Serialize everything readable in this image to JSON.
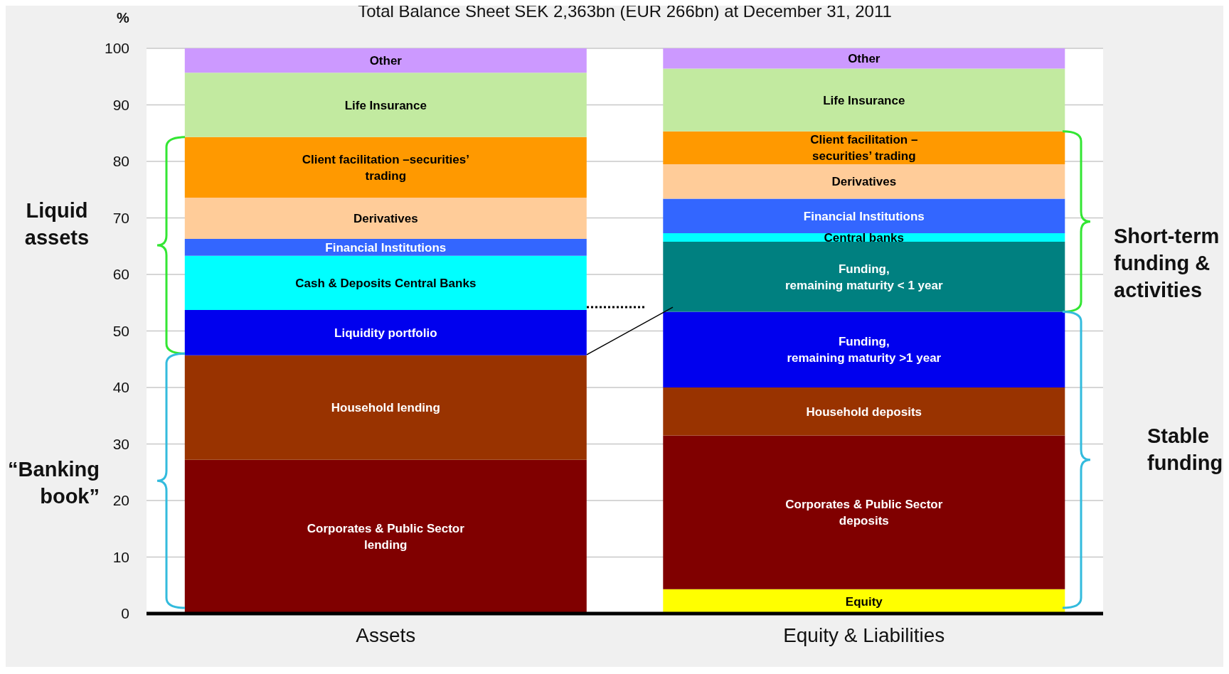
{
  "chart_data": {
    "type": "bar",
    "stacked": true,
    "title": "Total Balance Sheet SEK 2,363bn (EUR 266bn) at December 31, 2011",
    "ylabel": "%",
    "categories": [
      "Assets",
      "Equity & Liabilities"
    ],
    "ylim": [
      0,
      100
    ],
    "yticks": [
      0,
      10,
      20,
      30,
      40,
      50,
      60,
      70,
      80,
      90,
      100
    ],
    "grid": "y",
    "legend": false,
    "series": [
      {
        "name": "Corporates & Public Sector lending",
        "color": "#800000",
        "values": [
          27.2,
          null
        ]
      },
      {
        "name": "Household lending",
        "color": "#993300",
        "values": [
          18.5,
          null
        ]
      },
      {
        "name": "Liquidity portfolio",
        "color": "#0000ee",
        "values": [
          8.0,
          null
        ]
      },
      {
        "name": "Cash & Deposits Central Banks",
        "color": "#00ffff",
        "values": [
          9.6,
          null
        ]
      },
      {
        "name": "Financial  Institutions",
        "color": "#3366ff",
        "values": [
          3.0,
          null
        ]
      },
      {
        "name": "Derivatives",
        "color": "#ffcc99",
        "values": [
          7.3,
          null
        ]
      },
      {
        "name": "Client facilitation –securities’ trading",
        "color": "#ff9900",
        "values": [
          10.7,
          null
        ]
      },
      {
        "name": "Life  Insurance",
        "color": "#c2eaa0",
        "values": [
          11.4,
          null
        ]
      },
      {
        "name": "Other",
        "color": "#cc99ff",
        "values": [
          4.3,
          null
        ]
      },
      {
        "name": "Equity",
        "color": "#ffff00",
        "values": [
          null,
          4.3
        ]
      },
      {
        "name": "Corporates & Public Sector deposits",
        "color": "#800000",
        "values": [
          null,
          27.2
        ]
      },
      {
        "name": "Household deposits",
        "color": "#993300",
        "values": [
          null,
          8.5
        ]
      },
      {
        "name": "Funding, remaining maturity >1 year",
        "color": "#0000ee",
        "values": [
          null,
          13.4
        ]
      },
      {
        "name": "Funding, remaining maturity < 1 year",
        "color": "#008080",
        "values": [
          null,
          12.4
        ]
      },
      {
        "name": "Central banks",
        "color": "#00ffff",
        "values": [
          null,
          1.5
        ]
      },
      {
        "name": "Financial Institutions",
        "color": "#3366ff",
        "values": [
          null,
          6.1
        ]
      },
      {
        "name": "Derivatives",
        "color": "#ffcc99",
        "values": [
          null,
          6.1
        ]
      },
      {
        "name": "Client facilitation – securities’ trading",
        "color": "#ff9900",
        "values": [
          null,
          5.8
        ]
      },
      {
        "name": "Life  Insurance",
        "color": "#c2eaa0",
        "values": [
          null,
          11.1
        ]
      },
      {
        "name": "Other",
        "color": "#cc99ff",
        "values": [
          null,
          3.6
        ]
      }
    ],
    "annotations": [
      "Liquid assets",
      "“Banking book”",
      "Short-term funding & activities",
      "Stable funding"
    ]
  }
}
